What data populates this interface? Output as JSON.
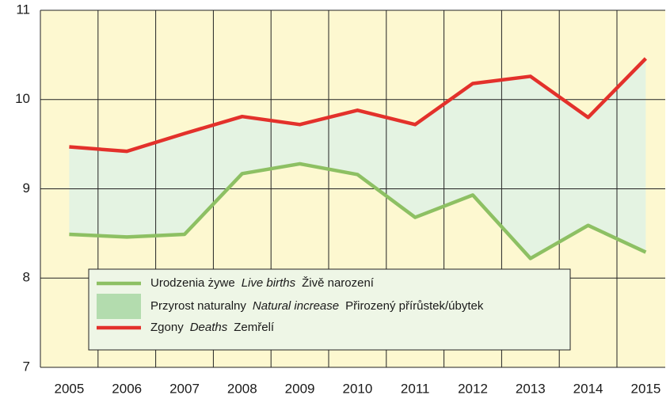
{
  "chart_data": {
    "type": "line",
    "categories": [
      "2005",
      "2006",
      "2007",
      "2008",
      "2009",
      "2010",
      "2011",
      "2012",
      "2013",
      "2014",
      "2015"
    ],
    "series": [
      {
        "name": [
          "Urodzenia żywe",
          "Live births",
          "Živě narození"
        ],
        "color": "#8dc063",
        "values": [
          8.49,
          8.46,
          8.49,
          9.17,
          9.28,
          9.16,
          8.68,
          8.93,
          8.22,
          8.59,
          8.29
        ]
      },
      {
        "name": [
          "Zgony",
          "Deaths",
          "Zemřelí"
        ],
        "color": "#e3312b",
        "values": [
          9.47,
          9.42,
          9.62,
          9.81,
          9.72,
          9.88,
          9.72,
          10.18,
          10.26,
          9.8,
          10.46
        ]
      }
    ],
    "area": {
      "name": [
        "Przyrost naturalny",
        "Natural increase",
        "Přirozený přírůstek/úbytek"
      ],
      "color": "#e4f3e2",
      "legend_color": "#b3dcae"
    },
    "ylim": [
      7,
      11
    ],
    "yticks": [
      7,
      8,
      9,
      10,
      11
    ],
    "grid": true
  }
}
